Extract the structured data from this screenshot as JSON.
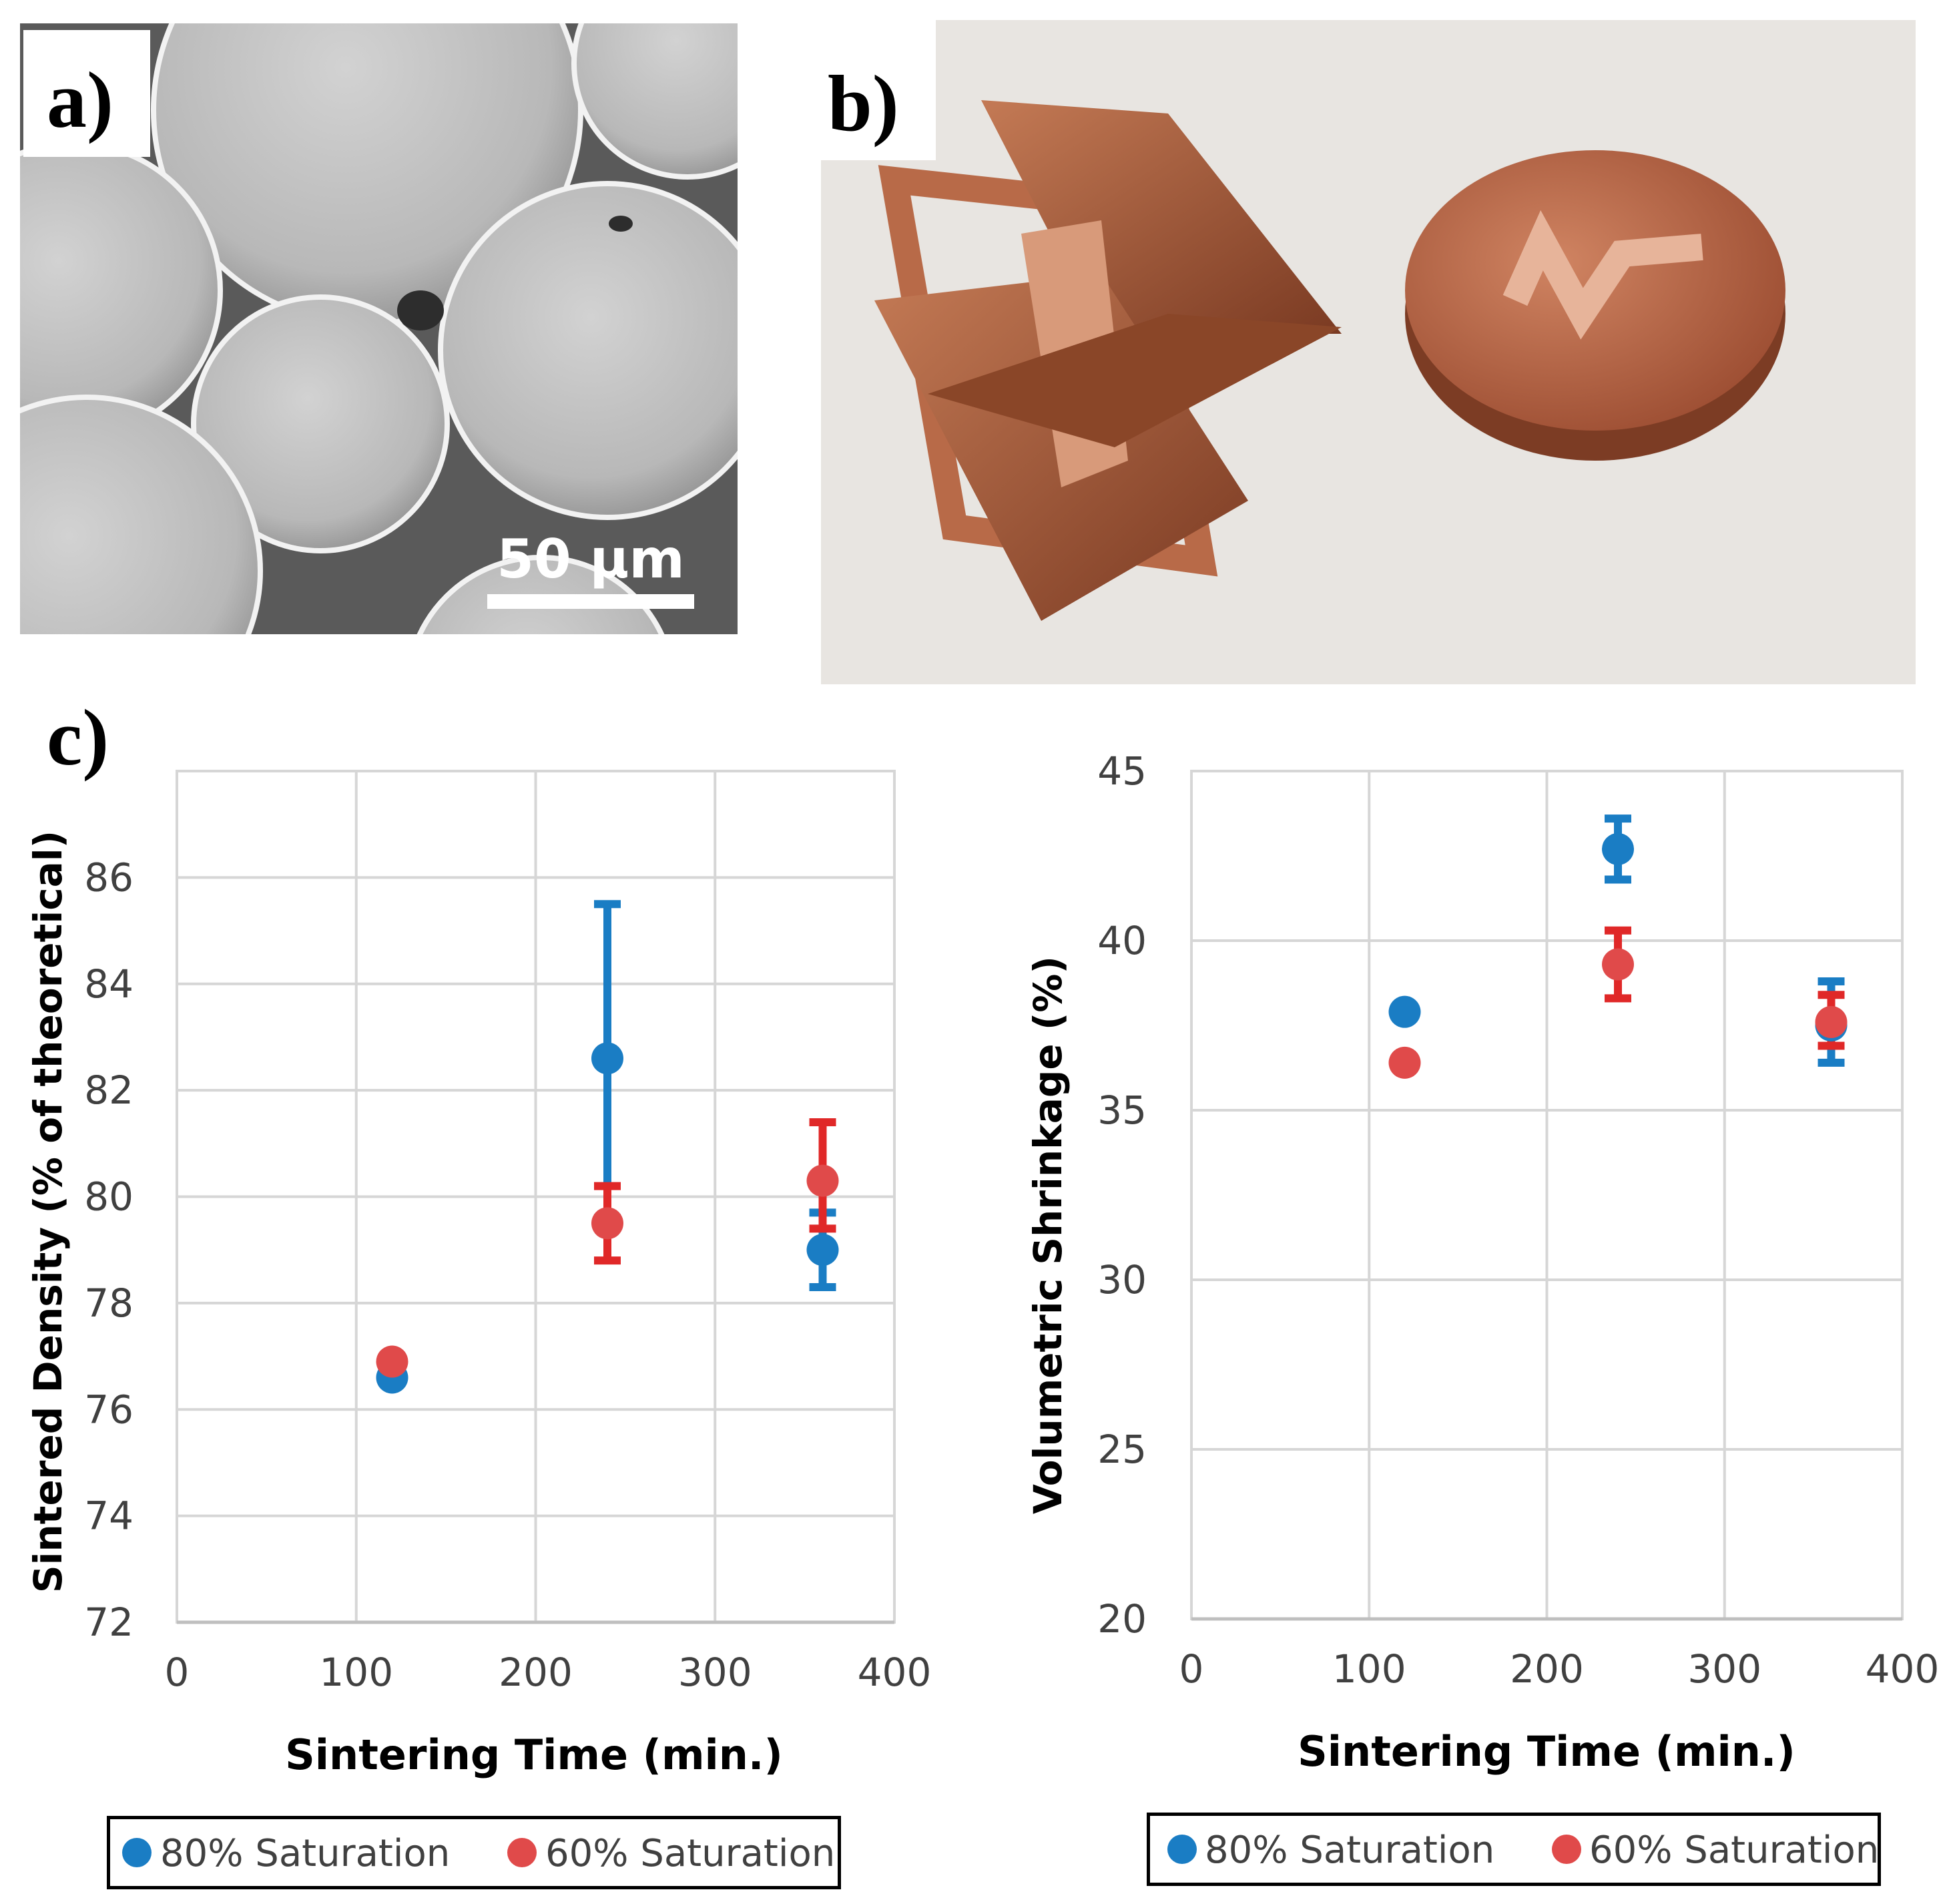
{
  "panels": {
    "a": {
      "label": "a)",
      "scale_bar": "50 μm"
    },
    "b": {
      "label": "b)"
    },
    "c": {
      "label": "c)"
    }
  },
  "colors": {
    "series_80": "#1a7dc4",
    "series_60": "#e04a4a",
    "error_80": "#1a7dc4",
    "error_60": "#e02828",
    "grid": "#d6d6d6",
    "axis": "#bfbfbf"
  },
  "chart_data": [
    {
      "type": "scatter",
      "xlabel": "Sintering Time (min.)",
      "ylabel": "Sintered Density (% of theoretical)",
      "xlim": [
        0,
        400
      ],
      "ylim": [
        72,
        88
      ],
      "xticks": [
        0,
        100,
        200,
        300,
        400
      ],
      "yticks": [
        72,
        74,
        76,
        78,
        80,
        82,
        84,
        86
      ],
      "grid": true,
      "legend_position": "bottom",
      "series": [
        {
          "name": "80% Saturation",
          "x": [
            120,
            240,
            360
          ],
          "y": [
            76.6,
            82.6,
            79.0
          ],
          "err_low": [
            null,
            79.6,
            78.3
          ],
          "err_high": [
            null,
            85.5,
            79.7
          ]
        },
        {
          "name": "60% Saturation",
          "x": [
            120,
            240,
            360
          ],
          "y": [
            76.9,
            79.5,
            80.3
          ],
          "err_low": [
            null,
            78.8,
            79.4
          ],
          "err_high": [
            null,
            80.2,
            81.4
          ]
        }
      ]
    },
    {
      "type": "scatter",
      "xlabel": "Sintering Time (min.)",
      "ylabel": "Volumetric Shrinkage (%)",
      "xlim": [
        0,
        400
      ],
      "ylim": [
        20,
        45
      ],
      "xticks": [
        0,
        100,
        200,
        300,
        400
      ],
      "yticks": [
        20,
        25,
        30,
        35,
        40,
        45
      ],
      "grid": true,
      "legend_position": "bottom",
      "series": [
        {
          "name": "80% Saturation",
          "x": [
            120,
            240,
            360
          ],
          "y": [
            37.9,
            42.7,
            37.5
          ],
          "err_low": [
            null,
            41.8,
            36.4
          ],
          "err_high": [
            null,
            43.6,
            38.8
          ]
        },
        {
          "name": "60% Saturation",
          "x": [
            120,
            240,
            360
          ],
          "y": [
            36.4,
            39.3,
            37.6
          ],
          "err_low": [
            null,
            38.3,
            36.9
          ],
          "err_high": [
            null,
            40.3,
            38.4
          ]
        }
      ]
    }
  ]
}
